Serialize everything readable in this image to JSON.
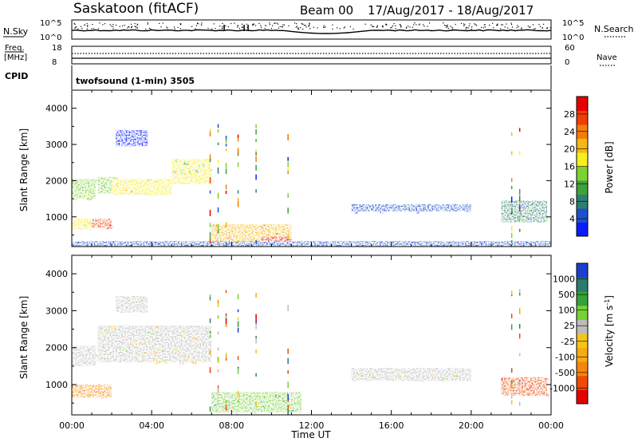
{
  "header": {
    "radar": "Saskatoon (fitACF)",
    "beam": "Beam 00",
    "dates": "17/Aug/2017 - 18/Aug/2017"
  },
  "top_panels": {
    "nsky_label": "N.Sky",
    "nsky_ticks": [
      "10^5",
      "10^0"
    ],
    "nsky_ticks_right": [
      "10^5",
      "10^0"
    ],
    "nsearch_label": "N.Search",
    "freq_label": "Freq.",
    "freq_unit": "[MHz]",
    "freq_ticks": [
      "18",
      "8"
    ],
    "nave_ticks": [
      "60",
      "0"
    ],
    "nave_label": "Nave",
    "cpid_label": "CPID",
    "cpid_text": "twofsound (1-min) 3505"
  },
  "chart_data": [
    {
      "type": "heatmap",
      "panel": "power",
      "ylabel": "Slant Range [km]",
      "y_ticks": [
        "1000",
        "2000",
        "3000",
        "4000"
      ],
      "ylim": [
        180,
        4500
      ],
      "x_ticks": [
        "00:00",
        "04:00",
        "08:00",
        "12:00",
        "16:00",
        "20:00",
        "00:00"
      ],
      "xlim": [
        0,
        24
      ],
      "colorbar": {
        "label": "Power [dB]",
        "ticks": [
          "4",
          "8",
          "12",
          "16",
          "20",
          "24",
          "28"
        ],
        "colors": [
          "#0a1cff",
          "#1e50cc",
          "#2e7f6f",
          "#3ea33a",
          "#7cd133",
          "#f7ee1f",
          "#f6b812",
          "#f57c0a",
          "#f03d05",
          "#e60000"
        ]
      },
      "regions": [
        {
          "t": [
            0.0,
            1.2
          ],
          "r": [
            1500,
            2050
          ],
          "level": 0.45
        },
        {
          "t": [
            0.0,
            1.0
          ],
          "r": [
            650,
            950
          ],
          "level": 0.55
        },
        {
          "t": [
            1.0,
            2.0
          ],
          "r": [
            700,
            950
          ],
          "level": 0.85
        },
        {
          "t": [
            1.3,
            2.3
          ],
          "r": [
            1650,
            2100
          ],
          "level": 0.45
        },
        {
          "t": [
            2.0,
            5.0
          ],
          "r": [
            1600,
            2050
          ],
          "level": 0.5
        },
        {
          "t": [
            5.0,
            7.0
          ],
          "r": [
            1900,
            2600
          ],
          "level": 0.5
        },
        {
          "t": [
            2.2,
            3.8
          ],
          "r": [
            2950,
            3400
          ],
          "level": 0.05
        },
        {
          "t": [
            7.0,
            11.0
          ],
          "r": [
            250,
            800
          ],
          "level": 0.7
        },
        {
          "t": [
            9.5,
            11.0
          ],
          "r": [
            200,
            450
          ],
          "level": 0.95
        },
        {
          "t": [
            14.0,
            20.0
          ],
          "r": [
            1150,
            1350
          ],
          "level": 0.1
        },
        {
          "t": [
            21.5,
            23.8
          ],
          "r": [
            850,
            1450
          ],
          "level": 0.25
        },
        {
          "t": [
            0.0,
            24.0
          ],
          "r": [
            190,
            330
          ],
          "level": 0.1
        }
      ]
    },
    {
      "type": "heatmap",
      "panel": "velocity",
      "ylabel": "Slant Range [km]",
      "y_ticks": [
        "1000",
        "2000",
        "3000",
        "4000"
      ],
      "ylim": [
        180,
        4500
      ],
      "x_ticks": [
        "00:00",
        "04:00",
        "08:00",
        "12:00",
        "16:00",
        "20:00",
        "00:00"
      ],
      "xlim": [
        0,
        24
      ],
      "xlabel": "Time UT",
      "colorbar": {
        "label": "Velocity [m s^-1]",
        "label_main": "Velocity [m s",
        "label_sup": "-1",
        "label_end": "]",
        "ticks": [
          "-1000",
          "-500",
          "-100",
          "-25",
          "25",
          "100",
          "500",
          "1000"
        ],
        "colors": [
          "#e60000",
          "#f04a05",
          "#f5860a",
          "#f5ac12",
          "#f5c518",
          "#bcbcbc",
          "#76d132",
          "#34a236",
          "#2d7a6e",
          "#1a3fcc"
        ]
      },
      "regions": [
        {
          "t": [
            0.0,
            2.0
          ],
          "r": [
            650,
            1000
          ],
          "level": 0.2
        },
        {
          "t": [
            0.0,
            1.2
          ],
          "r": [
            1500,
            2050
          ],
          "level": 0.5
        },
        {
          "t": [
            1.3,
            7.0
          ],
          "r": [
            1600,
            2600
          ],
          "level": 0.5
        },
        {
          "t": [
            2.2,
            3.8
          ],
          "r": [
            2950,
            3400
          ],
          "level": 0.5
        },
        {
          "t": [
            7.0,
            11.5
          ],
          "r": [
            250,
            800
          ],
          "level": 0.7
        },
        {
          "t": [
            14.0,
            20.0
          ],
          "r": [
            1100,
            1450
          ],
          "level": 0.55
        },
        {
          "t": [
            21.5,
            23.8
          ],
          "r": [
            700,
            1200
          ],
          "level": 0.15
        }
      ]
    }
  ]
}
